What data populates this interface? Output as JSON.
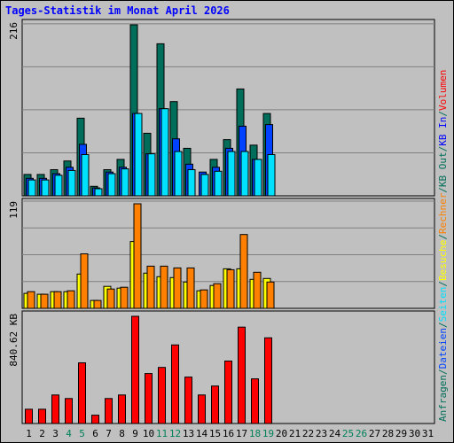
{
  "title": "Tages-Statistik im Monat April 2026",
  "colors": {
    "anfragen": "#006e5a",
    "dateien": "#0042ff",
    "seiten": "#00e0ff",
    "besuche": "#ffff00",
    "rechner": "#ff8000",
    "volumen": "#ff0000",
    "kb_in": "#0000ff",
    "kb_out": "#006e5a",
    "weekend": "#00805a",
    "plot_bg": "#c0c0c0"
  },
  "chart_data": [
    {
      "type": "bar",
      "panel": "hits",
      "ymax_label": "216",
      "ylim": [
        0,
        216
      ],
      "grid": true,
      "x": [
        1,
        2,
        3,
        4,
        5,
        6,
        7,
        8,
        9,
        10,
        11,
        12,
        13,
        14,
        15,
        16,
        17,
        18,
        19,
        20,
        21,
        22,
        23,
        24,
        25,
        26,
        27,
        28,
        29,
        30,
        31
      ],
      "series": [
        {
          "name": "Anfragen",
          "color_key": "anfragen",
          "values": [
            27,
            27,
            33,
            44,
            98,
            12,
            33,
            46,
            216,
            79,
            192,
            119,
            60,
            0,
            46,
            71,
            135,
            64,
            104,
            0,
            0,
            0,
            0,
            0,
            0,
            0,
            0,
            0,
            0,
            0,
            0
          ]
        },
        {
          "name": "Dateien",
          "color_key": "dateien",
          "values": [
            22,
            22,
            28,
            36,
            65,
            10,
            30,
            36,
            104,
            53,
            110,
            72,
            40,
            30,
            36,
            60,
            88,
            46,
            90,
            0,
            0,
            0,
            0,
            0,
            0,
            0,
            0,
            0,
            0,
            0,
            0
          ]
        },
        {
          "name": "Seiten",
          "color_key": "seiten",
          "values": [
            20,
            20,
            26,
            32,
            52,
            9,
            28,
            34,
            104,
            53,
            110,
            56,
            33,
            27,
            31,
            56,
            56,
            46,
            52,
            0,
            0,
            0,
            0,
            0,
            0,
            0,
            0,
            0,
            0,
            0,
            0
          ]
        }
      ]
    },
    {
      "type": "bar",
      "panel": "visits",
      "ymax_label": "119",
      "ylim": [
        0,
        119
      ],
      "grid": true,
      "x": [
        1,
        2,
        3,
        4,
        5,
        6,
        7,
        8,
        9,
        10,
        11,
        12,
        13,
        14,
        15,
        16,
        17,
        18,
        19,
        20,
        21,
        22,
        23,
        24,
        25,
        26,
        27,
        28,
        29,
        30,
        31
      ],
      "series": [
        {
          "name": "Besuche",
          "color_key": "besuche",
          "values": [
            17,
            16,
            19,
            19,
            39,
            9,
            25,
            23,
            76,
            40,
            36,
            35,
            30,
            20,
            26,
            45,
            45,
            33,
            34,
            0,
            0,
            0,
            0,
            0,
            0,
            0,
            0,
            0,
            0,
            0,
            0
          ]
        },
        {
          "name": "Rechner",
          "color_key": "rechner",
          "values": [
            19,
            16,
            19,
            20,
            62,
            9,
            22,
            24,
            119,
            48,
            48,
            46,
            46,
            21,
            28,
            44,
            84,
            41,
            30,
            0,
            0,
            0,
            0,
            0,
            0,
            0,
            0,
            0,
            0,
            0,
            0
          ]
        }
      ]
    },
    {
      "type": "bar",
      "panel": "volume",
      "ymax_label": "840.62 KB",
      "ylim": [
        0,
        840.62
      ],
      "grid": false,
      "x": [
        1,
        2,
        3,
        4,
        5,
        6,
        7,
        8,
        9,
        10,
        11,
        12,
        13,
        14,
        15,
        16,
        17,
        18,
        19,
        20,
        21,
        22,
        23,
        24,
        25,
        26,
        27,
        28,
        29,
        30,
        31
      ],
      "series": [
        {
          "name": "Volumen",
          "color_key": "volumen",
          "values": [
            112,
            112,
            224,
            196,
            476,
            65,
            196,
            224,
            840.62,
            392,
            440,
            616,
            364,
            224,
            294,
            490,
            756,
            350,
            672,
            0,
            0,
            0,
            0,
            0,
            0,
            0,
            0,
            0,
            0,
            0,
            0
          ]
        }
      ]
    }
  ],
  "x_labels": [
    "1",
    "2",
    "3",
    "4",
    "5",
    "6",
    "7",
    "8",
    "9",
    "10",
    "11",
    "12",
    "13",
    "14",
    "15",
    "16",
    "17",
    "18",
    "19",
    "20",
    "21",
    "22",
    "23",
    "24",
    "25",
    "26",
    "27",
    "28",
    "29",
    "30",
    "31"
  ],
  "weekend_days": [
    4,
    5,
    11,
    12,
    18,
    19,
    25,
    26
  ],
  "right_labels": {
    "top": [
      {
        "text": "Anfragen",
        "color_key": "anfragen"
      },
      {
        "text": "/",
        "color_key": "anfragen"
      },
      {
        "text": "Dateien",
        "color_key": "dateien"
      },
      {
        "text": "/",
        "color_key": "anfragen"
      },
      {
        "text": "Seiten",
        "color_key": "seiten"
      },
      {
        "text": "/",
        "color_key": "anfragen"
      },
      {
        "text": "Besuche",
        "color_key": "besuche"
      },
      {
        "text": "/",
        "color_key": "anfragen"
      },
      {
        "text": "Rechner",
        "color_key": "rechner"
      },
      {
        "text": "/",
        "color_key": "anfragen"
      },
      {
        "text": "KB Out",
        "color_key": "kb_out"
      },
      {
        "text": "/",
        "color_key": "anfragen"
      },
      {
        "text": "KB In",
        "color_key": "kb_in"
      },
      {
        "text": "/",
        "color_key": "anfragen"
      },
      {
        "text": "Volumen",
        "color_key": "volumen"
      }
    ]
  }
}
